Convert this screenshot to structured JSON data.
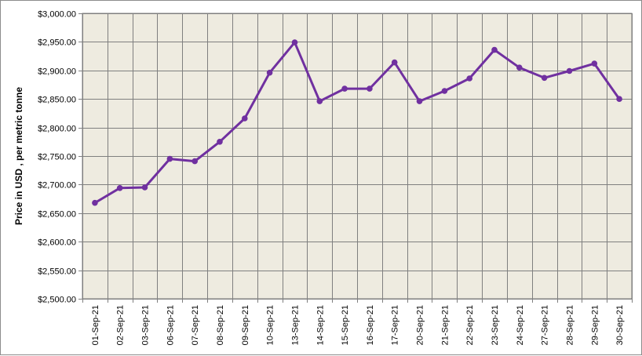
{
  "chart_data": {
    "type": "line",
    "title": "",
    "xlabel": "",
    "ylabel": "Price in USD , per metric tonne",
    "ylim": [
      2500,
      3000
    ],
    "y_step": 50,
    "grid": true,
    "legend": "none",
    "colors": {
      "plot_background": "#eeebe0",
      "gridline": "#7f7f7f",
      "series": "#7030a0"
    },
    "categories": [
      "01-Sep-21",
      "02-Sep-21",
      "03-Sep-21",
      "06-Sep-21",
      "07-Sep-21",
      "08-Sep-21",
      "09-Sep-21",
      "10-Sep-21",
      "13-Sep-21",
      "14-Sep-21",
      "15-Sep-21",
      "16-Sep-21",
      "17-Sep-21",
      "20-Sep-21",
      "21-Sep-21",
      "22-Sep-21",
      "23-Sep-21",
      "24-Sep-21",
      "27-Sep-21",
      "28-Sep-21",
      "29-Sep-21",
      "30-Sep-21"
    ],
    "y_tick_labels": [
      "$2,500.00",
      "$2,550.00",
      "$2,600.00",
      "$2,650.00",
      "$2,700.00",
      "$2,750.00",
      "$2,800.00",
      "$2,850.00",
      "$2,900.00",
      "$2,950.00",
      "$3,000.00"
    ],
    "series": [
      {
        "values": [
          2668,
          2694,
          2695,
          2745,
          2741,
          2775,
          2816,
          2896,
          2949,
          2846,
          2868,
          2868,
          2914,
          2846,
          2864,
          2886,
          2936,
          2905,
          2887,
          2899,
          2912,
          2850
        ]
      }
    ]
  }
}
